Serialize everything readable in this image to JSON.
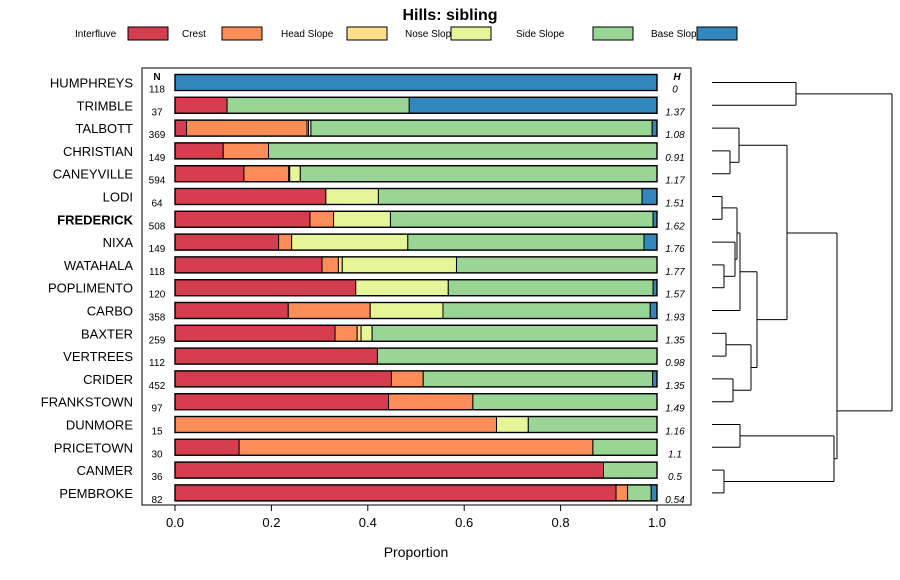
{
  "chart_data": {
    "type": "bar",
    "orientation": "horizontal",
    "stacked": true,
    "title": "Hills: sibling",
    "xlabel": "Proportion",
    "xlim": [
      0,
      1
    ],
    "xticks": [
      "0.0",
      "0.2",
      "0.4",
      "0.6",
      "0.8",
      "1.0"
    ],
    "n_header": "N",
    "h_header": "H",
    "legend_position": "top",
    "highlighted_row": "FREDERICK",
    "series": [
      {
        "name": "Interfluve",
        "color": "#D53E4F"
      },
      {
        "name": "Crest",
        "color": "#FC8D59"
      },
      {
        "name": "Head Slope",
        "color": "#FEE08B"
      },
      {
        "name": "Nose Slope",
        "color": "#E6F598"
      },
      {
        "name": "Side Slope",
        "color": "#99D594"
      },
      {
        "name": "Base Slope",
        "color": "#3288BD"
      }
    ],
    "rows": [
      {
        "name": "HUMPHREYS",
        "n": "118",
        "h": "0",
        "values": [
          0.0,
          0.0,
          0.0,
          0.0,
          0.0,
          1.0
        ]
      },
      {
        "name": "TRIMBLE",
        "n": "37",
        "h": "1.37",
        "values": [
          0.108,
          0.0,
          0.0,
          0.0,
          0.378,
          0.514
        ]
      },
      {
        "name": "TALBOTT",
        "n": "369",
        "h": "1.08",
        "values": [
          0.024,
          0.25,
          0.003,
          0.005,
          0.708,
          0.01
        ]
      },
      {
        "name": "CHRISTIAN",
        "n": "149",
        "h": "0.91",
        "values": [
          0.1,
          0.094,
          0.0,
          0.0,
          0.806,
          0.0
        ]
      },
      {
        "name": "CANEYVILLE",
        "n": "594",
        "h": "1.17",
        "values": [
          0.143,
          0.093,
          0.002,
          0.022,
          0.74,
          0.0
        ]
      },
      {
        "name": "LODI",
        "n": "64",
        "h": "1.51",
        "values": [
          0.313,
          0.0,
          0.0,
          0.109,
          0.547,
          0.031
        ]
      },
      {
        "name": "FREDERICK",
        "n": "508",
        "h": "1.62",
        "values": [
          0.28,
          0.049,
          0.0,
          0.118,
          0.545,
          0.008
        ]
      },
      {
        "name": "NIXA",
        "n": "149",
        "h": "1.76",
        "values": [
          0.215,
          0.027,
          0.0,
          0.241,
          0.49,
          0.027
        ]
      },
      {
        "name": "WATAHALA",
        "n": "118",
        "h": "1.77",
        "values": [
          0.305,
          0.034,
          0.008,
          0.237,
          0.416,
          0.0
        ]
      },
      {
        "name": "POPLIMENTO",
        "n": "120",
        "h": "1.57",
        "values": [
          0.375,
          0.0,
          0.0,
          0.192,
          0.425,
          0.008
        ]
      },
      {
        "name": "CARBO",
        "n": "358",
        "h": "1.93",
        "values": [
          0.235,
          0.17,
          0.0,
          0.151,
          0.43,
          0.014
        ]
      },
      {
        "name": "BAXTER",
        "n": "259",
        "h": "1.35",
        "values": [
          0.332,
          0.046,
          0.008,
          0.023,
          0.591,
          0.0
        ]
      },
      {
        "name": "VERTREES",
        "n": "112",
        "h": "0.98",
        "values": [
          0.42,
          0.0,
          0.0,
          0.0,
          0.58,
          0.0
        ]
      },
      {
        "name": "CRIDER",
        "n": "452",
        "h": "1.35",
        "values": [
          0.449,
          0.066,
          0.0,
          0.0,
          0.476,
          0.009
        ]
      },
      {
        "name": "FRANKSTOWN",
        "n": "97",
        "h": "1.49",
        "values": [
          0.443,
          0.175,
          0.0,
          0.0,
          0.382,
          0.0
        ]
      },
      {
        "name": "DUNMORE",
        "n": "15",
        "h": "1.16",
        "values": [
          0.0,
          0.667,
          0.0,
          0.066,
          0.267,
          0.0
        ]
      },
      {
        "name": "PRICETOWN",
        "n": "30",
        "h": "1.1",
        "values": [
          0.133,
          0.734,
          0.0,
          0.0,
          0.133,
          0.0
        ]
      },
      {
        "name": "CANMER",
        "n": "36",
        "h": "0.5",
        "values": [
          0.889,
          0.0,
          0.0,
          0.0,
          0.111,
          0.0
        ]
      },
      {
        "name": "PEMBROKE",
        "n": "82",
        "h": "0.54",
        "values": [
          0.915,
          0.024,
          0.0,
          0.0,
          0.049,
          0.012
        ]
      }
    ]
  }
}
